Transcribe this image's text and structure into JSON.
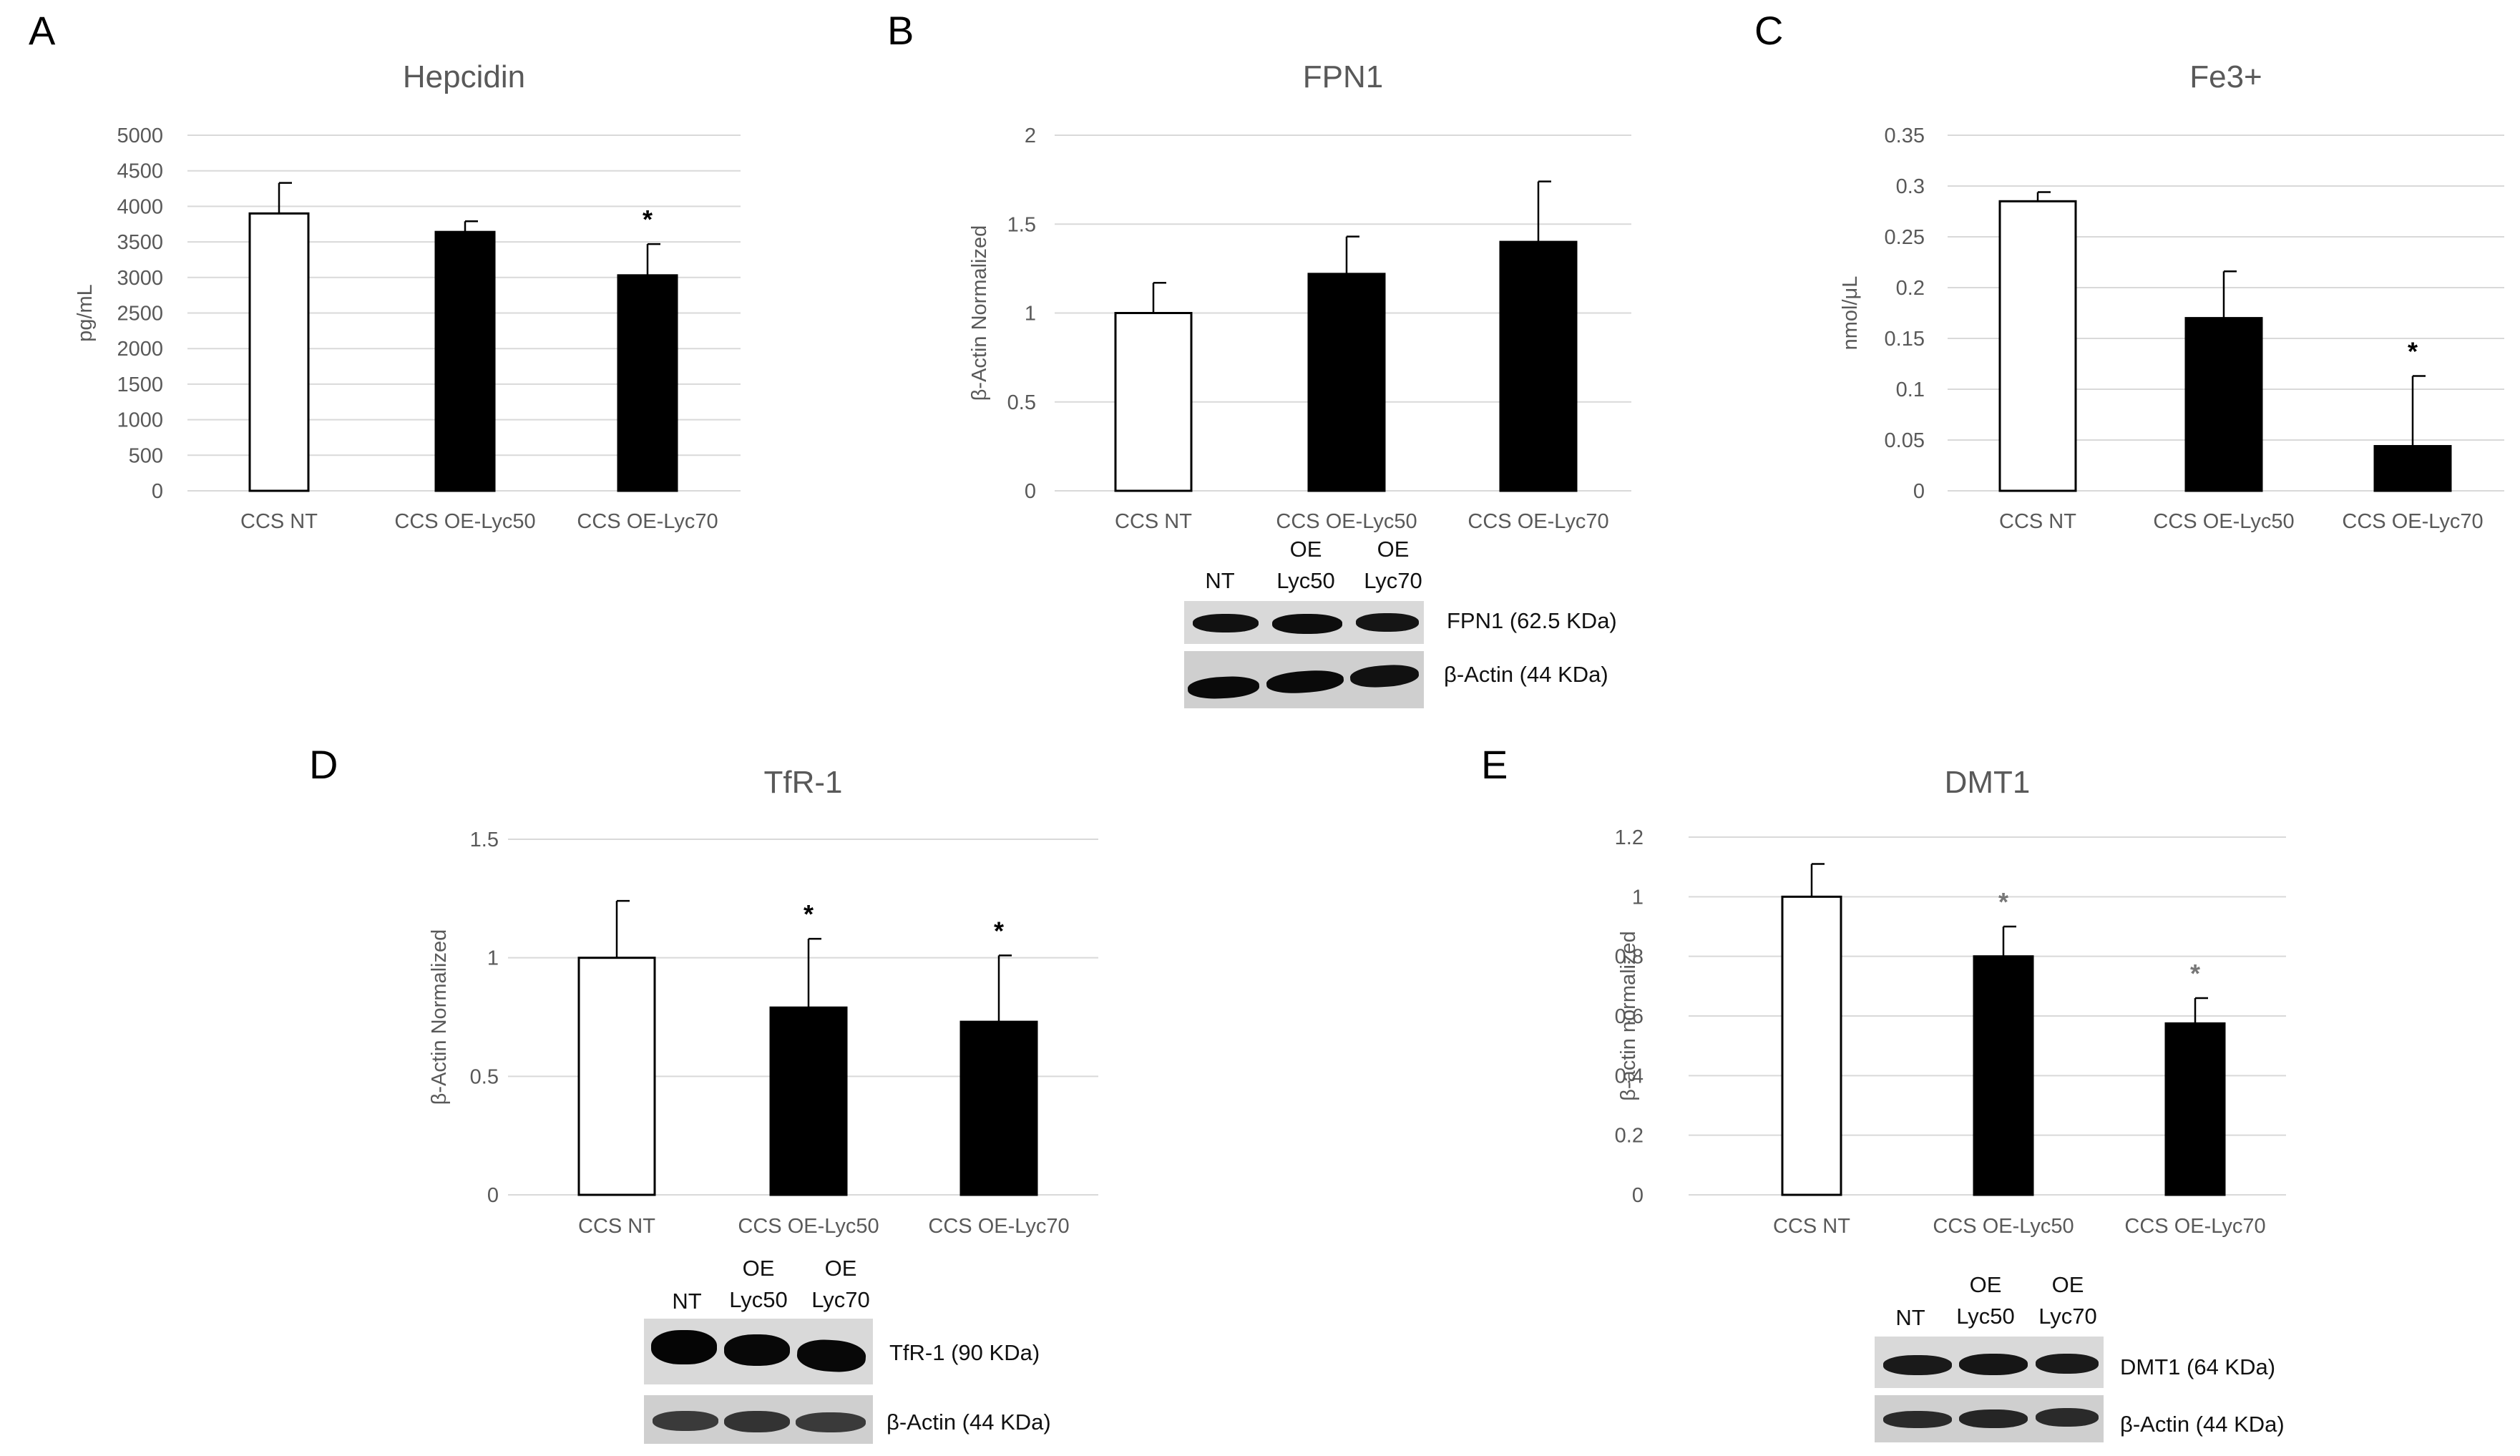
{
  "chart_data": [
    {
      "panel": "A",
      "type": "bar",
      "title": "Hepcidin",
      "ylabel": "pg/mL",
      "categories": [
        "CCS NT",
        "CCS OE-Lyc50",
        "CCS OE-Lyc70"
      ],
      "values": [
        3900,
        3640,
        3030
      ],
      "errors": [
        430,
        150,
        440
      ],
      "significance": [
        "",
        "",
        "*"
      ],
      "fills": [
        "#ffffff",
        "#000000",
        "#000000"
      ],
      "ylim": [
        0,
        5000
      ],
      "yticks": [
        0,
        500,
        1000,
        1500,
        2000,
        2500,
        3000,
        3500,
        4000,
        4500,
        5000
      ],
      "ytick_labels": [
        "0",
        "500",
        "1000",
        "1500",
        "2000",
        "2500",
        "3000",
        "3500",
        "4000",
        "4500",
        "5000"
      ],
      "grid": true
    },
    {
      "panel": "B",
      "type": "bar",
      "title": "FPN1",
      "ylabel": "β-Actin Normalized",
      "categories": [
        "CCS NT",
        "CCS OE-Lyc50",
        "CCS OE-Lyc70"
      ],
      "values": [
        1.0,
        1.22,
        1.4
      ],
      "errors": [
        0.17,
        0.21,
        0.34
      ],
      "significance": [
        "",
        "",
        ""
      ],
      "fills": [
        "#ffffff",
        "#000000",
        "#000000"
      ],
      "ylim": [
        0,
        2
      ],
      "yticks": [
        0,
        0.5,
        1,
        1.5,
        2
      ],
      "ytick_labels": [
        "0",
        "0.5",
        "1",
        "1.5",
        "2"
      ],
      "grid": true
    },
    {
      "panel": "C",
      "type": "bar",
      "title": "Fe3+",
      "ylabel": "nmol/μL",
      "categories": [
        "CCS NT",
        "CCS OE-Lyc50",
        "CCS OE-Lyc70"
      ],
      "values": [
        0.285,
        0.17,
        0.044
      ],
      "errors": [
        0.009,
        0.046,
        0.069
      ],
      "significance": [
        "",
        "",
        "*"
      ],
      "fills": [
        "#ffffff",
        "#000000",
        "#000000"
      ],
      "ylim": [
        0,
        0.35
      ],
      "yticks": [
        0,
        0.05,
        0.1,
        0.15,
        0.2,
        0.25,
        0.3,
        0.35
      ],
      "ytick_labels": [
        "0",
        "0.05",
        "0.1",
        "0.15",
        "0.2",
        "0.25",
        "0.3",
        "0.35"
      ],
      "grid": true
    },
    {
      "panel": "D",
      "type": "bar",
      "title": "TfR-1",
      "ylabel": "β-Actin Normalized",
      "categories": [
        "CCS NT",
        "CCS OE-Lyc50",
        "CCS OE-Lyc70"
      ],
      "values": [
        1.0,
        0.79,
        0.73
      ],
      "errors": [
        0.24,
        0.29,
        0.28
      ],
      "significance": [
        "",
        "*",
        "*"
      ],
      "fills": [
        "#ffffff",
        "#000000",
        "#000000"
      ],
      "ylim": [
        0,
        1.5
      ],
      "yticks": [
        0,
        0.5,
        1,
        1.5
      ],
      "ytick_labels": [
        "0",
        "0.5",
        "1",
        "1.5"
      ],
      "grid": true
    },
    {
      "panel": "E",
      "type": "bar",
      "title": "DMT1",
      "ylabel": "β-actin normalized",
      "categories": [
        "CCS NT",
        "CCS OE-Lyc50",
        "CCS OE-Lyc70"
      ],
      "values": [
        1.0,
        0.8,
        0.575
      ],
      "errors": [
        0.11,
        0.1,
        0.085
      ],
      "significance": [
        "",
        "*",
        "*"
      ],
      "fills": [
        "#ffffff",
        "#000000",
        "#000000"
      ],
      "ylim": [
        0,
        1.2
      ],
      "yticks": [
        0,
        0.2,
        0.4,
        0.6,
        0.8,
        1,
        1.2
      ],
      "ytick_labels": [
        "0",
        "0.2",
        "0.4",
        "0.6",
        "0.8",
        "1",
        "1.2"
      ],
      "grid": true
    }
  ],
  "blots": {
    "B": {
      "lanes": [
        "NT",
        "OE\nLyc50",
        "OE\nLyc70"
      ],
      "target": "FPN1 (62.5 KDa)",
      "control": "β-Actin (44 KDa)"
    },
    "D": {
      "lanes": [
        "NT",
        "OE\nLyc50",
        "OE\nLyc70"
      ],
      "target": "TfR-1 (90 KDa)",
      "control": "β-Actin (44 KDa)"
    },
    "E": {
      "lanes": [
        "NT",
        "OE\nLyc50",
        "OE\nLyc70"
      ],
      "target": "DMT1 (64 KDa)",
      "control": "β-Actin (44 KDa)"
    }
  },
  "colors": {
    "axis_text": "#595959",
    "grid": "#d9d9d9",
    "bar_dark": "#000000",
    "bar_light": "#ffffff",
    "panel_letter": "#000000"
  }
}
